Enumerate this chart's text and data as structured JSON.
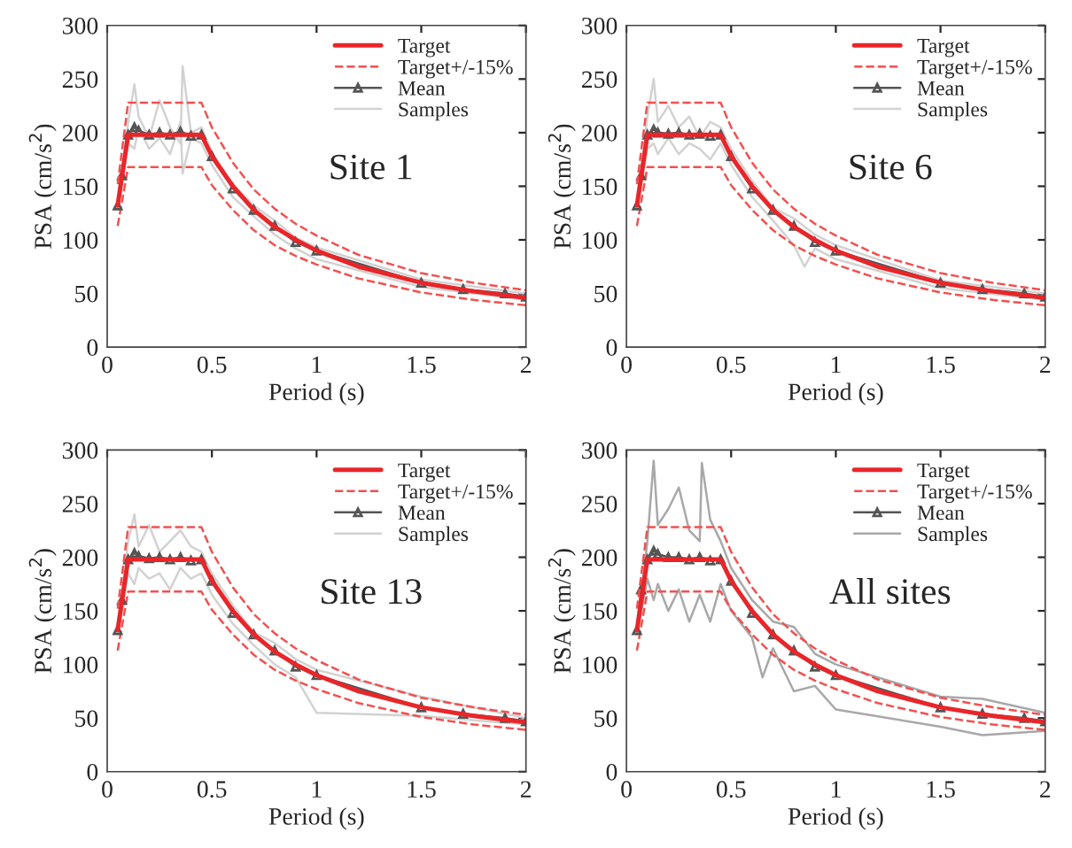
{
  "chart_data": [
    {
      "type": "line",
      "xlabel": "Period (s)",
      "ylabel": "PSA (cm/s$^{2}$)",
      "annotations": [
        "Site 1"
      ],
      "xlim": [
        0,
        2
      ],
      "ylim": [
        0,
        300
      ],
      "xticks": [
        0,
        0.5,
        1,
        1.5,
        2
      ],
      "yticks": [
        0,
        50,
        100,
        150,
        200,
        250,
        300
      ],
      "legend": "top right",
      "grid": false,
      "series": [
        {
          "name": "Samples",
          "color": "#d2d2d2",
          "line_style": "solid",
          "marker": "none",
          "x": [
            0.05,
            0.1,
            0.13,
            0.15,
            0.2,
            0.25,
            0.3,
            0.35,
            0.36,
            0.4,
            0.45,
            0.5,
            0.6,
            0.7,
            0.8,
            0.9,
            1,
            1.5,
            2
          ],
          "values": [
            130,
            210,
            245,
            215,
            195,
            230,
            205,
            190,
            262,
            200,
            205,
            182,
            152,
            132,
            118,
            102,
            93,
            63,
            50
          ]
        },
        {
          "color": "#d2d2d2",
          "line_style": "solid",
          "marker": "none",
          "x": [
            0.05,
            0.1,
            0.13,
            0.15,
            0.2,
            0.25,
            0.3,
            0.35,
            0.36,
            0.4,
            0.45,
            0.5,
            0.6,
            0.7,
            0.8,
            0.9,
            1,
            1.5,
            2
          ],
          "values": [
            128,
            190,
            185,
            205,
            185,
            195,
            180,
            210,
            162,
            195,
            190,
            170,
            140,
            122,
            105,
            92,
            82,
            56,
            44
          ]
        },
        {
          "color": "#f25050",
          "line_style": "dashed",
          "marker": "none",
          "x": [
            0.05,
            0.1,
            0.45,
            0.5,
            0.6,
            0.7,
            0.8,
            0.9,
            1,
            1.2,
            1.5,
            1.75,
            2
          ],
          "values": [
            113,
            168,
            168,
            151,
            128,
            109,
            95,
            85,
            77,
            64,
            51,
            44,
            39
          ]
        },
        {
          "name": "Mean",
          "color": "#555555",
          "line_style": "solid",
          "marker": "triangle",
          "x": [
            0.05,
            0.07,
            0.1,
            0.13,
            0.15,
            0.2,
            0.25,
            0.3,
            0.35,
            0.4,
            0.45,
            0.5,
            0.6,
            0.7,
            0.8,
            0.9,
            1,
            1.5,
            1.7,
            1.9,
            2
          ],
          "values": [
            132,
            160,
            198,
            205,
            202,
            198,
            200,
            198,
            201,
            197,
            198,
            178,
            148,
            128,
            113,
            98,
            90,
            60,
            54,
            50,
            47
          ]
        },
        {
          "name": "Target+/-15%",
          "color": "#f25050",
          "line_style": "dashed",
          "marker": "none",
          "x": [
            0.05,
            0.1,
            0.45,
            0.5,
            0.6,
            0.7,
            0.8,
            0.9,
            1,
            1.2,
            1.5,
            1.75,
            2
          ],
          "values": [
            152,
            228,
            228,
            205,
            172,
            147,
            129,
            115,
            104,
            86,
            69,
            60,
            53
          ]
        },
        {
          "name": "Target",
          "color": "#e8262a",
          "line_style": "solid",
          "marker": "none",
          "x": [
            0.05,
            0.1,
            0.45,
            0.5,
            0.6,
            0.7,
            0.8,
            0.9,
            1,
            1.2,
            1.5,
            1.75,
            2
          ],
          "values": [
            132,
            198,
            198,
            178,
            150,
            128,
            112,
            100,
            90,
            75,
            60,
            52,
            46
          ]
        }
      ]
    },
    {
      "type": "line",
      "xlabel": "Period (s)",
      "ylabel": "PSA (cm/s$^{2}$)",
      "annotations": [
        "Site 6"
      ],
      "xlim": [
        0,
        2
      ],
      "ylim": [
        0,
        300
      ],
      "xticks": [
        0,
        0.5,
        1,
        1.5,
        2
      ],
      "yticks": [
        0,
        50,
        100,
        150,
        200,
        250,
        300
      ],
      "legend": "top right",
      "grid": false,
      "series": [
        {
          "name": "Samples",
          "color": "#d2d2d2",
          "line_style": "solid",
          "marker": "none",
          "x": [
            0.05,
            0.1,
            0.13,
            0.15,
            0.2,
            0.25,
            0.3,
            0.35,
            0.4,
            0.45,
            0.5,
            0.6,
            0.7,
            0.8,
            0.9,
            1,
            1.5,
            2
          ],
          "values": [
            130,
            215,
            250,
            210,
            225,
            205,
            215,
            195,
            210,
            205,
            185,
            155,
            130,
            120,
            105,
            95,
            62,
            50
          ]
        },
        {
          "color": "#d2d2d2",
          "line_style": "solid",
          "marker": "none",
          "x": [
            0.05,
            0.1,
            0.13,
            0.15,
            0.2,
            0.25,
            0.3,
            0.35,
            0.4,
            0.45,
            0.5,
            0.6,
            0.7,
            0.8,
            0.85,
            0.9,
            1,
            1.5,
            2
          ],
          "values": [
            128,
            185,
            190,
            180,
            195,
            180,
            190,
            185,
            175,
            190,
            170,
            140,
            118,
            95,
            75,
            92,
            82,
            55,
            44
          ]
        },
        {
          "color": "#f25050",
          "line_style": "dashed",
          "marker": "none",
          "x": [
            0.05,
            0.1,
            0.45,
            0.5,
            0.6,
            0.7,
            0.8,
            0.9,
            1,
            1.2,
            1.5,
            1.75,
            2
          ],
          "values": [
            113,
            168,
            168,
            151,
            128,
            109,
            95,
            85,
            77,
            64,
            51,
            44,
            39
          ]
        },
        {
          "name": "Mean",
          "color": "#555555",
          "line_style": "solid",
          "marker": "triangle",
          "x": [
            0.05,
            0.07,
            0.1,
            0.13,
            0.15,
            0.2,
            0.25,
            0.3,
            0.35,
            0.4,
            0.45,
            0.5,
            0.6,
            0.7,
            0.8,
            0.9,
            1,
            1.5,
            1.7,
            1.9,
            2
          ],
          "values": [
            132,
            160,
            198,
            203,
            200,
            199,
            200,
            198,
            199,
            197,
            198,
            178,
            148,
            128,
            113,
            98,
            90,
            60,
            54,
            50,
            47
          ]
        },
        {
          "name": "Target+/-15%",
          "color": "#f25050",
          "line_style": "dashed",
          "marker": "none",
          "x": [
            0.05,
            0.1,
            0.45,
            0.5,
            0.6,
            0.7,
            0.8,
            0.9,
            1,
            1.2,
            1.5,
            1.75,
            2
          ],
          "values": [
            152,
            228,
            228,
            205,
            172,
            147,
            129,
            115,
            104,
            86,
            69,
            60,
            53
          ]
        },
        {
          "name": "Target",
          "color": "#e8262a",
          "line_style": "solid",
          "marker": "none",
          "x": [
            0.05,
            0.1,
            0.45,
            0.5,
            0.6,
            0.7,
            0.8,
            0.9,
            1,
            1.2,
            1.5,
            1.75,
            2
          ],
          "values": [
            132,
            198,
            198,
            178,
            150,
            128,
            112,
            100,
            90,
            75,
            60,
            52,
            46
          ]
        }
      ]
    },
    {
      "type": "line",
      "xlabel": "Period (s)",
      "ylabel": "PSA (cm/s$^{2}$)",
      "annotations": [
        "Site 13"
      ],
      "xlim": [
        0,
        2
      ],
      "ylim": [
        0,
        300
      ],
      "xticks": [
        0,
        0.5,
        1,
        1.5,
        2
      ],
      "yticks": [
        0,
        50,
        100,
        150,
        200,
        250,
        300
      ],
      "legend": "top right",
      "grid": false,
      "series": [
        {
          "name": "Samples",
          "color": "#d2d2d2",
          "line_style": "solid",
          "marker": "none",
          "x": [
            0.05,
            0.1,
            0.13,
            0.15,
            0.2,
            0.25,
            0.3,
            0.35,
            0.4,
            0.45,
            0.5,
            0.6,
            0.7,
            0.8,
            0.9,
            1,
            1.5,
            2
          ],
          "values": [
            130,
            215,
            240,
            210,
            230,
            205,
            215,
            225,
            210,
            205,
            185,
            155,
            130,
            120,
            105,
            95,
            70,
            50
          ]
        },
        {
          "color": "#d2d2d2",
          "line_style": "solid",
          "marker": "none",
          "x": [
            0.05,
            0.1,
            0.13,
            0.15,
            0.2,
            0.25,
            0.3,
            0.35,
            0.4,
            0.45,
            0.5,
            0.6,
            0.7,
            0.8,
            0.9,
            1,
            1.5,
            2
          ],
          "values": [
            128,
            185,
            175,
            190,
            180,
            185,
            170,
            190,
            180,
            185,
            165,
            138,
            118,
            100,
            88,
            55,
            52,
            44
          ]
        },
        {
          "color": "#f25050",
          "line_style": "dashed",
          "marker": "none",
          "x": [
            0.05,
            0.1,
            0.45,
            0.5,
            0.6,
            0.7,
            0.8,
            0.9,
            1,
            1.2,
            1.5,
            1.75,
            2
          ],
          "values": [
            113,
            168,
            168,
            151,
            128,
            109,
            95,
            85,
            77,
            64,
            51,
            44,
            39
          ]
        },
        {
          "name": "Mean",
          "color": "#555555",
          "line_style": "solid",
          "marker": "triangle",
          "x": [
            0.05,
            0.07,
            0.1,
            0.13,
            0.15,
            0.2,
            0.25,
            0.3,
            0.35,
            0.4,
            0.45,
            0.5,
            0.6,
            0.7,
            0.8,
            0.9,
            1,
            1.5,
            1.7,
            1.9,
            2
          ],
          "values": [
            132,
            160,
            198,
            204,
            201,
            199,
            200,
            198,
            200,
            197,
            198,
            178,
            148,
            128,
            113,
            98,
            90,
            60,
            54,
            50,
            47
          ]
        },
        {
          "name": "Target+/-15%",
          "color": "#f25050",
          "line_style": "dashed",
          "marker": "none",
          "x": [
            0.05,
            0.1,
            0.45,
            0.5,
            0.6,
            0.7,
            0.8,
            0.9,
            1,
            1.2,
            1.5,
            1.75,
            2
          ],
          "values": [
            152,
            228,
            228,
            205,
            172,
            147,
            129,
            115,
            104,
            86,
            69,
            60,
            53
          ]
        },
        {
          "name": "Target",
          "color": "#e8262a",
          "line_style": "solid",
          "marker": "none",
          "x": [
            0.05,
            0.1,
            0.45,
            0.5,
            0.6,
            0.7,
            0.8,
            0.9,
            1,
            1.2,
            1.5,
            1.75,
            2
          ],
          "values": [
            132,
            198,
            198,
            178,
            150,
            128,
            112,
            100,
            90,
            75,
            60,
            52,
            46
          ]
        }
      ]
    },
    {
      "type": "line",
      "xlabel": "Period (s)",
      "ylabel": "PSA (cm/s$^{2}$)",
      "annotations": [
        "All sites"
      ],
      "xlim": [
        0,
        2
      ],
      "ylim": [
        0,
        300
      ],
      "xticks": [
        0,
        0.5,
        1,
        1.5,
        2
      ],
      "yticks": [
        0,
        50,
        100,
        150,
        200,
        250,
        300
      ],
      "legend": "top right",
      "grid": false,
      "series": [
        {
          "name": "Samples",
          "color": "#a8a8a8",
          "line_style": "solid",
          "marker": "none",
          "x": [
            0.05,
            0.1,
            0.13,
            0.15,
            0.2,
            0.25,
            0.3,
            0.35,
            0.36,
            0.4,
            0.45,
            0.5,
            0.6,
            0.7,
            0.8,
            0.9,
            1,
            1.5,
            1.7,
            2
          ],
          "values": [
            130,
            215,
            290,
            230,
            245,
            265,
            225,
            215,
            288,
            235,
            215,
            190,
            160,
            140,
            135,
            110,
            100,
            70,
            68,
            55
          ]
        },
        {
          "color": "#a8a8a8",
          "line_style": "solid",
          "marker": "none",
          "x": [
            0.05,
            0.1,
            0.13,
            0.15,
            0.2,
            0.25,
            0.3,
            0.35,
            0.4,
            0.45,
            0.5,
            0.6,
            0.65,
            0.7,
            0.8,
            0.9,
            1,
            1.5,
            1.7,
            2
          ],
          "values": [
            128,
            180,
            160,
            175,
            150,
            170,
            140,
            165,
            140,
            175,
            150,
            125,
            88,
            115,
            75,
            80,
            58,
            42,
            34,
            38
          ]
        },
        {
          "color": "#f25050",
          "line_style": "dashed",
          "marker": "none",
          "x": [
            0.05,
            0.1,
            0.45,
            0.5,
            0.6,
            0.7,
            0.8,
            0.9,
            1,
            1.2,
            1.5,
            1.75,
            2
          ],
          "values": [
            113,
            168,
            168,
            151,
            128,
            109,
            95,
            85,
            77,
            64,
            51,
            44,
            39
          ]
        },
        {
          "name": "Mean",
          "color": "#555555",
          "line_style": "solid",
          "marker": "triangle",
          "x": [
            0.05,
            0.07,
            0.1,
            0.13,
            0.15,
            0.2,
            0.25,
            0.3,
            0.35,
            0.4,
            0.45,
            0.5,
            0.6,
            0.7,
            0.8,
            0.9,
            1,
            1.5,
            1.7,
            1.9,
            2
          ],
          "values": [
            132,
            170,
            198,
            206,
            203,
            200,
            200,
            198,
            200,
            197,
            198,
            178,
            148,
            128,
            113,
            98,
            90,
            60,
            54,
            50,
            47
          ]
        },
        {
          "name": "Target+/-15%",
          "color": "#f25050",
          "line_style": "dashed",
          "marker": "none",
          "x": [
            0.05,
            0.1,
            0.45,
            0.5,
            0.6,
            0.7,
            0.8,
            0.9,
            1,
            1.2,
            1.5,
            1.75,
            2
          ],
          "values": [
            152,
            228,
            228,
            205,
            172,
            147,
            129,
            115,
            104,
            86,
            69,
            60,
            53
          ]
        },
        {
          "name": "Target",
          "color": "#e8262a",
          "line_style": "solid",
          "marker": "none",
          "x": [
            0.05,
            0.1,
            0.45,
            0.5,
            0.6,
            0.7,
            0.8,
            0.9,
            1,
            1.2,
            1.5,
            1.75,
            2
          ],
          "values": [
            132,
            198,
            198,
            178,
            150,
            128,
            112,
            100,
            90,
            75,
            60,
            52,
            46
          ]
        }
      ]
    }
  ]
}
